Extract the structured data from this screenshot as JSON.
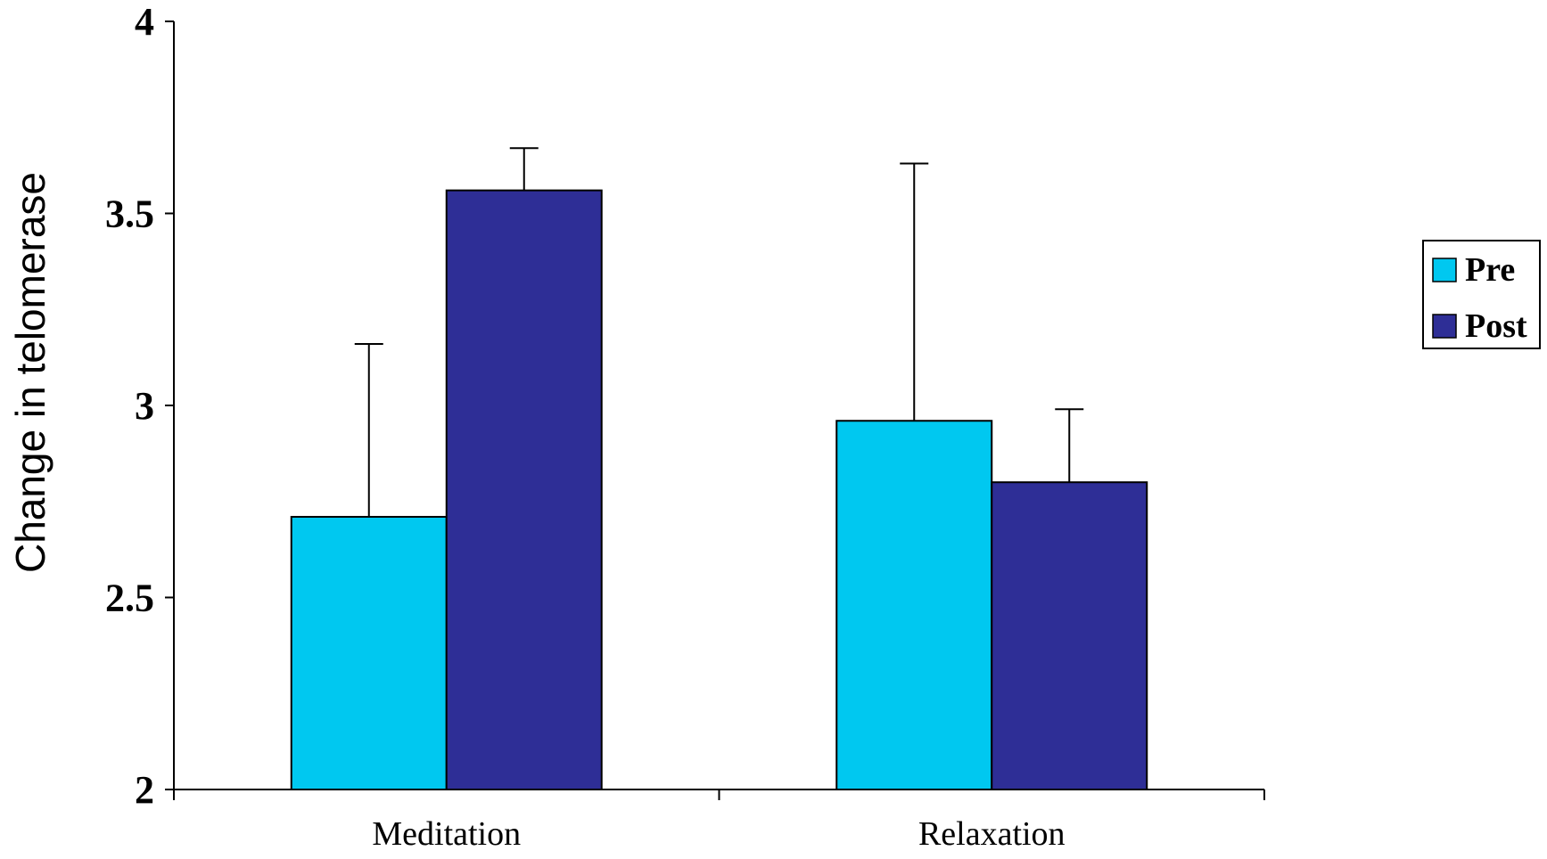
{
  "chart_data": {
    "type": "bar",
    "categories": [
      "Meditation",
      "Relaxation"
    ],
    "series": [
      {
        "name": "Pre",
        "color": "#00C8F0",
        "values": [
          2.71,
          2.96
        ],
        "error_upper": [
          3.16,
          3.63
        ]
      },
      {
        "name": "Post",
        "color": "#2E2E96",
        "values": [
          3.56,
          2.8
        ],
        "error_upper": [
          3.67,
          2.99
        ]
      }
    ],
    "ylabel": "Change in telomerase",
    "ylim": [
      2,
      4
    ],
    "yticks": [
      "2",
      "2.5",
      "3",
      "3.5",
      "4"
    ],
    "grid": false,
    "legend_position": "right"
  }
}
